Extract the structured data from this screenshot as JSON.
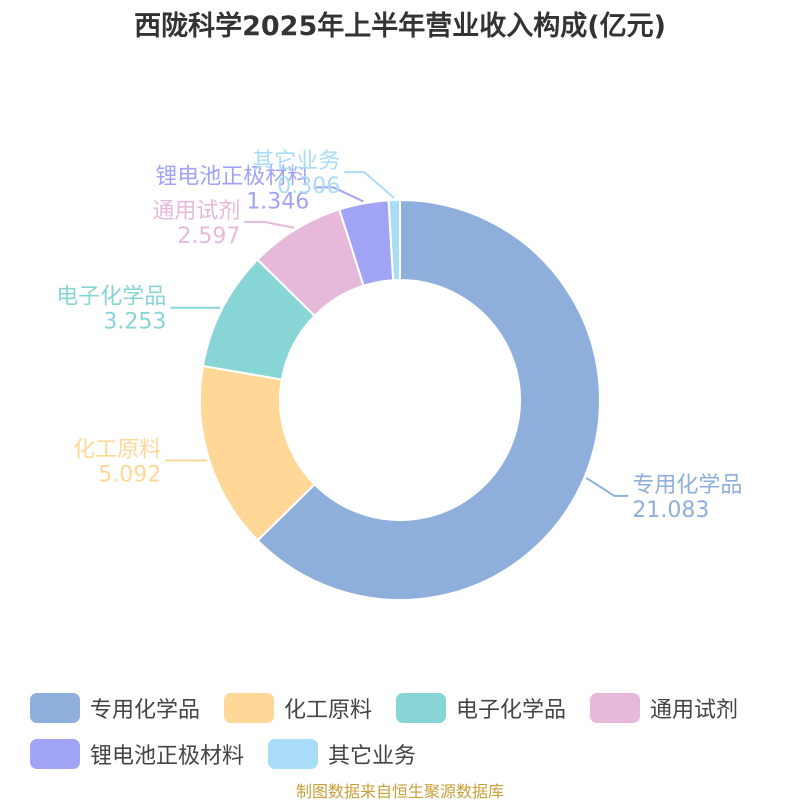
{
  "title": "西陇科学2025年上半年营业收入构成(亿元)",
  "source": "制图数据来自恒生聚源数据库",
  "chart_data": {
    "type": "donut",
    "title": "西陇科学2025年上半年营业收入构成(亿元)",
    "categories": [
      "专用化学品",
      "化工原料",
      "电子化学品",
      "通用试剂",
      "锂电池正极材料",
      "其它业务"
    ],
    "values": [
      21.083,
      5.092,
      3.253,
      2.597,
      1.346,
      0.306
    ],
    "value_labels": [
      "21.083",
      "5.092",
      "3.253",
      "2.597",
      "1.346",
      "0.306"
    ],
    "colors": [
      "#8eaedb",
      "#ffd898",
      "#88d5d6",
      "#e6b9da",
      "#a1a3f5",
      "#a9ddf7"
    ],
    "legend_position": "bottom"
  }
}
